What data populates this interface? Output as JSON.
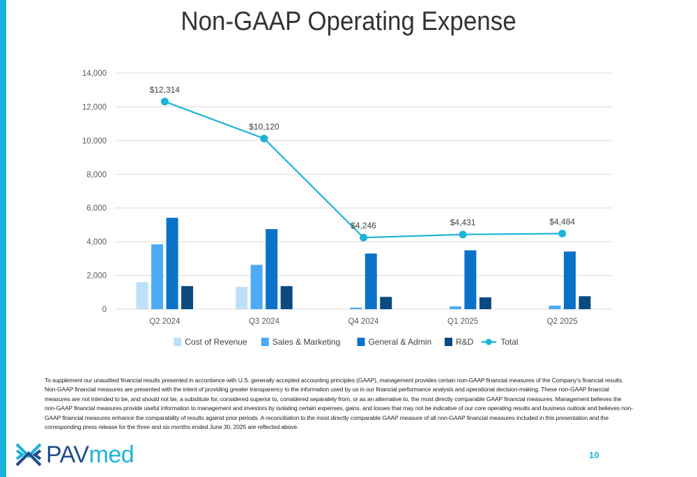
{
  "title": "Non-GAAP Operating Expense",
  "colors": {
    "accent": "#1bb3d8",
    "cost_of_revenue": "#bde0fb",
    "sales_marketing": "#4dabf5",
    "general_admin": "#0b72c9",
    "rnd": "#0b4a80",
    "total": "#1bb3d8"
  },
  "chart_data": {
    "type": "bar",
    "title": "",
    "xlabel": "",
    "ylabel": "",
    "categories": [
      "Q2 2024",
      "Q3 2024",
      "Q4 2024",
      "Q1 2025",
      "Q2 2025"
    ],
    "ylim": [
      0,
      14000
    ],
    "yticks": [
      "0",
      "2,000",
      "4,000",
      "6,000",
      "8,000",
      "10,000",
      "12,000",
      "14,000"
    ],
    "ytick_values": [
      0,
      2000,
      4000,
      6000,
      8000,
      10000,
      12000,
      14000
    ],
    "grid": true,
    "legend_position": "bottom",
    "series": [
      {
        "name": "Cost of Revenue",
        "kind": "bar",
        "values": [
          1600,
          1330,
          0,
          0,
          0
        ]
      },
      {
        "name": "Sales & Marketing",
        "kind": "bar",
        "values": [
          3850,
          2630,
          90,
          170,
          210
        ]
      },
      {
        "name": "General & Admin",
        "kind": "bar",
        "values": [
          5420,
          4750,
          3300,
          3490,
          3420
        ]
      },
      {
        "name": "R&D",
        "kind": "bar",
        "values": [
          1370,
          1370,
          730,
          700,
          770
        ]
      },
      {
        "name": "Total",
        "kind": "line",
        "values": [
          12314,
          10120,
          4246,
          4431,
          4484
        ],
        "labels": [
          "$12,314",
          "$10,120",
          "$4,246",
          "$4,431",
          "$4,484"
        ]
      }
    ]
  },
  "footnote": "To supplement our unaudited financial results presented in accordance with U.S. generally accepted accounting principles (GAAP), management provides certain non-GAAP financial measures of the Company’s financial results.  Non-GAAP financial measures are presented with the intent of providing greater transparency to the information used by us in our financial performance analysis and operational decision-making. These non-GAAP financial measures are not intended to be, and should not be, a substitute for, considered superior to, considered separately from, or as an alternative to, the most directly comparable GAAP financial measures. Management believes the non-GAAP financial measures provide useful information to management and investors by isolating certain expenses, gains, and losses that may not be indicative of our core operating results and business outlook and believes non-GAAP financial measures enhance the comparability of results against prior periods. A reconciliation to the most directly comparable GAAP measure of all non-GAAP financial measures included in this presentation and the corresponding press release for the three and six months ended June 30, 2025 are reflected above.",
  "logo": {
    "part1": "PAV",
    "part2": "med"
  },
  "page_number": "10"
}
